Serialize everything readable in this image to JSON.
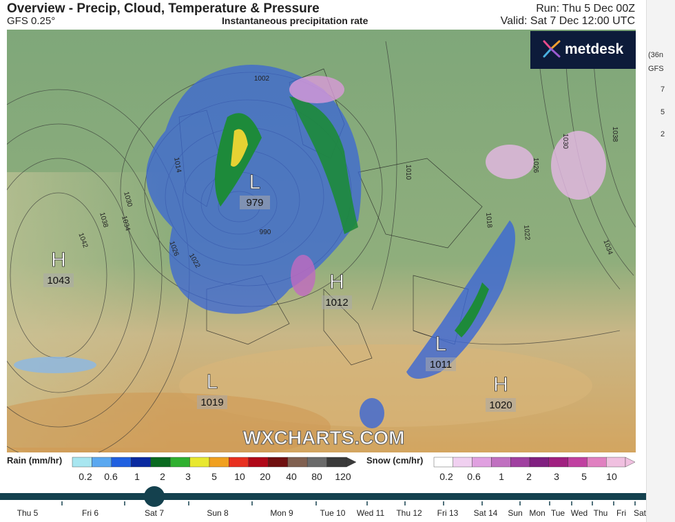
{
  "header": {
    "title": "Overview - Precip, Cloud, Temperature & Pressure",
    "model": "GFS 0.25°",
    "subtitle": "Instantaneous precipitation rate",
    "run": "Run: Thu 5 Dec 00Z",
    "valid": "Valid: Sat 7 Dec 12:00 UTC"
  },
  "logo": "metdesk",
  "watermark": "WXCHARTS.COM",
  "pressure_centres": [
    {
      "type": "H",
      "value": "1043"
    },
    {
      "type": "L",
      "value": "979"
    },
    {
      "type": "H",
      "value": "1012"
    },
    {
      "type": "L",
      "value": "1019"
    },
    {
      "type": "L",
      "value": "1011"
    },
    {
      "type": "H",
      "value": "1020"
    }
  ],
  "isobar_labels": [
    "1002",
    "1014",
    "1030",
    "1034",
    "1038",
    "1042",
    "1026",
    "1022",
    "990",
    "1010",
    "1030",
    "1026",
    "1038",
    "1034",
    "1018",
    "1022"
  ],
  "legend": {
    "rain": {
      "label": "Rain (mm/hr)",
      "ticks": [
        "0.2",
        "0.6",
        "1",
        "2",
        "3",
        "5",
        "10",
        "20",
        "40",
        "80",
        "120"
      ]
    },
    "snow": {
      "label": "Snow (cm/hr)",
      "ticks": [
        "0.2",
        "0.6",
        "1",
        "2",
        "3",
        "5",
        "10"
      ]
    }
  },
  "timeline": {
    "days": [
      "Thu 5",
      "Fri 6",
      "Sat 7",
      "Sun 8",
      "Mon 9",
      "Tue 10",
      "Wed 11",
      "Thu 12",
      "Fri 13",
      "Sat 14",
      "Sun",
      "Mon",
      "Tue",
      "Wed",
      "Thu",
      "Fri",
      "Sat"
    ]
  },
  "side_panel": {
    "texts": [
      "(36n",
      "GFS",
      "7",
      "5",
      "2"
    ]
  }
}
